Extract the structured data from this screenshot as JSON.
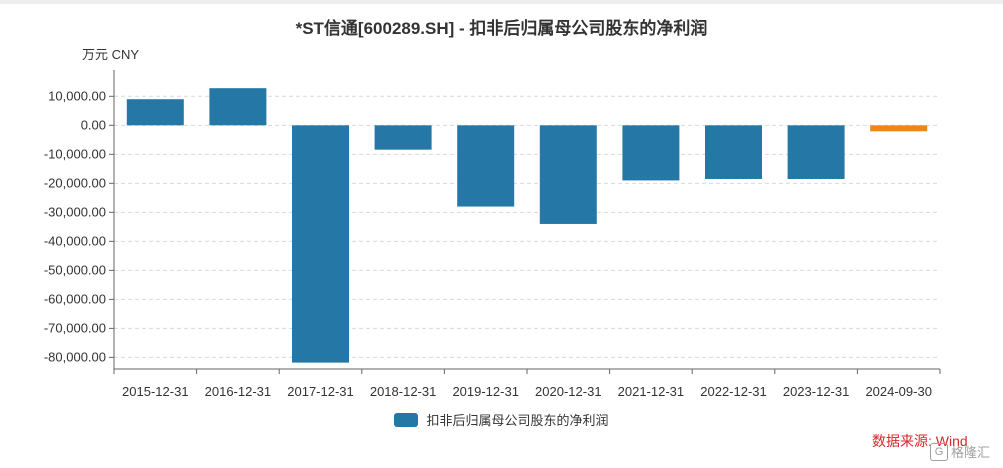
{
  "title": "*ST信通[600289.SH] - 扣非后归属母公司股东的净利润",
  "unit_label": "万元  CNY",
  "source": "数据来源: Wind",
  "watermark": {
    "icon_text": "G",
    "text": "格隆汇"
  },
  "colors": {
    "bar": "#2578a6",
    "bar_highlight": "#f08519",
    "grid": "#d9d9d9",
    "axis": "#666666"
  },
  "chart_data": {
    "type": "bar",
    "title": "*ST信通[600289.SH] - 扣非后归属母公司股东的净利润",
    "xlabel": "",
    "ylabel": "万元  CNY",
    "categories": [
      "2015-12-31",
      "2016-12-31",
      "2017-12-31",
      "2018-12-31",
      "2019-12-31",
      "2020-12-31",
      "2021-12-31",
      "2022-12-31",
      "2023-12-31",
      "2024-09-30"
    ],
    "series": [
      {
        "name": "扣非后归属母公司股东的净利润",
        "values": [
          9000,
          12800,
          -81800,
          -8400,
          -28000,
          -34000,
          -19000,
          -18500,
          -18500,
          -2000
        ]
      }
    ],
    "highlight_index": 9,
    "yticks": [
      10000,
      0,
      -10000,
      -20000,
      -30000,
      -40000,
      -50000,
      -60000,
      -70000,
      -80000
    ],
    "ytick_labels": [
      "10,000.00",
      "0.00",
      "-10,000.00",
      "-20,000.00",
      "-30,000.00",
      "-40,000.00",
      "-50,000.00",
      "-60,000.00",
      "-70,000.00",
      "-80,000.00"
    ],
    "ylim": [
      -84000,
      17000
    ],
    "grid": true,
    "legend_position": "bottom"
  }
}
